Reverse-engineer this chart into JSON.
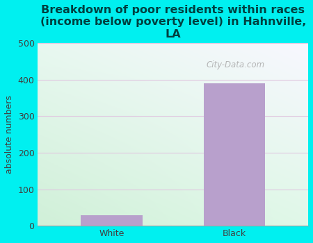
{
  "categories": [
    "White",
    "Black"
  ],
  "values": [
    28,
    390
  ],
  "bar_color": "#b8a0cc",
  "title": "Breakdown of poor residents within races\n(income below poverty level) in Hahnville,\nLA",
  "ylabel": "absolute numbers",
  "ylim": [
    0,
    500
  ],
  "yticks": [
    0,
    100,
    200,
    300,
    400,
    500
  ],
  "background_outer": "#00f0f0",
  "background_plot_topleft": "#e8f4f8",
  "background_plot_bottomleft": "#d0f0d8",
  "background_plot_topright": "#f0f0f8",
  "background_plot_bottomright": "#e0f8e8",
  "grid_color": "#e0c8e0",
  "title_color": "#004040",
  "title_fontsize": 11.5,
  "axis_label_fontsize": 9,
  "tick_fontsize": 9,
  "watermark": "City-Data.com"
}
